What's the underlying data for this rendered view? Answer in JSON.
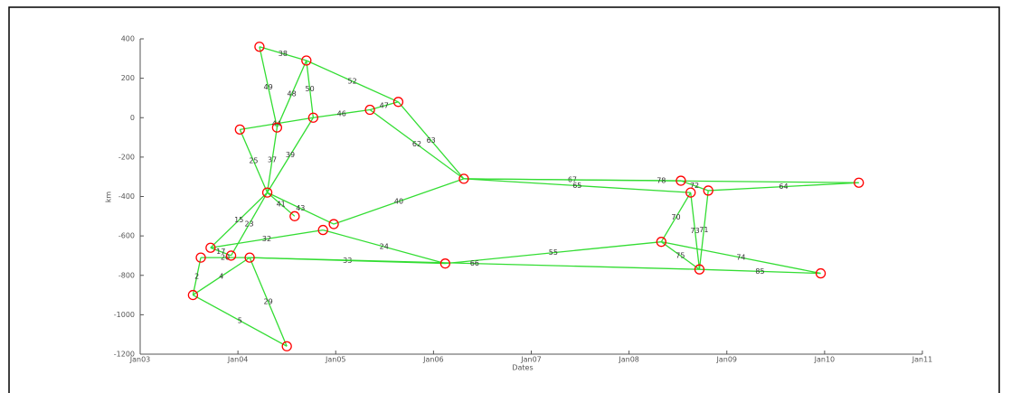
{
  "chart_data": {
    "type": "network",
    "xlabel": "Dates",
    "ylabel": "km",
    "xlim": [
      2003,
      2011
    ],
    "xticks": [
      {
        "value": 2003,
        "label": "Jan03"
      },
      {
        "value": 2004,
        "label": "Jan04"
      },
      {
        "value": 2005,
        "label": "Jan05"
      },
      {
        "value": 2006,
        "label": "Jan06"
      },
      {
        "value": 2007,
        "label": "Jan07"
      },
      {
        "value": 2008,
        "label": "Jan08"
      },
      {
        "value": 2009,
        "label": "Jan09"
      },
      {
        "value": 2010,
        "label": "Jan10"
      },
      {
        "value": 2011,
        "label": "Jan11"
      }
    ],
    "ylim": [
      -1200,
      400
    ],
    "yticks": [
      -1200,
      -1000,
      -800,
      -600,
      -400,
      -200,
      0,
      200,
      400
    ],
    "node_color": "#ff0000",
    "edge_color": "#33dd33",
    "x": [
      2004.22,
      2004.7,
      2005.64,
      2005.35,
      2004.77,
      2004.4,
      2004.02,
      2006.31,
      2004.3,
      2004.58,
      2004.98,
      2004.87,
      2003.72,
      2003.62,
      2003.93,
      2004.12,
      2003.54,
      2004.5,
      2006.12,
      2008.33,
      2008.53,
      2008.63,
      2008.81,
      2008.72,
      2009.96,
      2010.35
    ],
    "values": [
      360,
      290,
      80,
      40,
      0,
      -50,
      -60,
      -310,
      -380,
      -500,
      -540,
      -570,
      -660,
      -710,
      -700,
      -710,
      -900,
      -1160,
      -740,
      -630,
      -320,
      -380,
      -370,
      -770,
      -790,
      -330
    ],
    "edges": [
      {
        "from": 0,
        "to": 1,
        "label": "38"
      },
      {
        "from": 1,
        "to": 2,
        "label": "52"
      },
      {
        "from": 1,
        "to": 4,
        "label": "50"
      },
      {
        "from": 1,
        "to": 5,
        "label": "48"
      },
      {
        "from": 0,
        "to": 5,
        "label": "49"
      },
      {
        "from": 6,
        "to": 4,
        "label": "44"
      },
      {
        "from": 4,
        "to": 3,
        "label": "46"
      },
      {
        "from": 3,
        "to": 2,
        "label": "47"
      },
      {
        "from": 2,
        "to": 7,
        "label": "63"
      },
      {
        "from": 3,
        "to": 7,
        "label": "62"
      },
      {
        "from": 6,
        "to": 8,
        "label": "25"
      },
      {
        "from": 5,
        "to": 8,
        "label": "37"
      },
      {
        "from": 4,
        "to": 8,
        "label": "39"
      },
      {
        "from": 8,
        "to": 9,
        "label": "41"
      },
      {
        "from": 8,
        "to": 10,
        "label": "43"
      },
      {
        "from": 8,
        "to": 12,
        "label": "15"
      },
      {
        "from": 8,
        "to": 14,
        "label": "23"
      },
      {
        "from": 10,
        "to": 7,
        "label": "40"
      },
      {
        "from": 11,
        "to": 18,
        "label": "24"
      },
      {
        "from": 12,
        "to": 14,
        "label": "17"
      },
      {
        "from": 12,
        "to": 11,
        "label": "32"
      },
      {
        "from": 13,
        "to": 15,
        "label": "20"
      },
      {
        "from": 13,
        "to": 16,
        "label": "2"
      },
      {
        "from": 16,
        "to": 15,
        "label": "4"
      },
      {
        "from": 16,
        "to": 17,
        "label": "5"
      },
      {
        "from": 15,
        "to": 17,
        "label": "29"
      },
      {
        "from": 15,
        "to": 18,
        "label": "33"
      },
      {
        "from": 18,
        "to": 19,
        "label": "55"
      },
      {
        "from": 15,
        "to": 23,
        "label": "66"
      },
      {
        "from": 7,
        "to": 20,
        "label": "67"
      },
      {
        "from": 7,
        "to": 21,
        "label": "65"
      },
      {
        "from": 20,
        "to": 22,
        "label": "72"
      },
      {
        "from": 7,
        "to": 25,
        "label": "78"
      },
      {
        "from": 22,
        "to": 25,
        "label": "64"
      },
      {
        "from": 21,
        "to": 19,
        "label": "70"
      },
      {
        "from": 22,
        "to": 23,
        "label": "71"
      },
      {
        "from": 21,
        "to": 23,
        "label": "73"
      },
      {
        "from": 19,
        "to": 23,
        "label": "75"
      },
      {
        "from": 19,
        "to": 24,
        "label": "74"
      },
      {
        "from": 23,
        "to": 24,
        "label": "85"
      }
    ]
  }
}
